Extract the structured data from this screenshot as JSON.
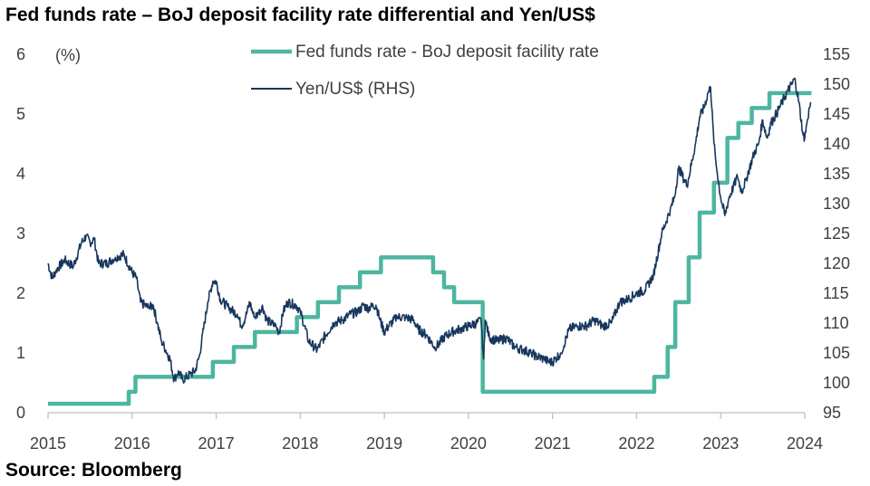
{
  "title": "Fed funds rate – BoJ deposit facility rate differential and Yen/US$",
  "source": "Source: Bloomberg",
  "chart_data": {
    "type": "line",
    "left_axis": {
      "unit_label": "(%)",
      "ylim": [
        0,
        6
      ],
      "ticks": [
        0,
        1,
        2,
        3,
        4,
        5,
        6
      ]
    },
    "right_axis": {
      "ylim": [
        95,
        155
      ],
      "ticks": [
        95,
        100,
        105,
        110,
        115,
        120,
        125,
        130,
        135,
        140,
        145,
        150,
        155
      ]
    },
    "x_axis": {
      "xlim": [
        2015,
        2024.2
      ],
      "ticks": [
        2015,
        2016,
        2017,
        2018,
        2019,
        2020,
        2021,
        2022,
        2023,
        2024
      ]
    },
    "grid": false,
    "legend_position": "top",
    "series": [
      {
        "name": "Fed funds rate - BoJ deposit facility rate",
        "axis": "left",
        "color": "#4db6a0",
        "step": true,
        "points": [
          [
            2015.0,
            0.15
          ],
          [
            2015.96,
            0.15
          ],
          [
            2015.96,
            0.35
          ],
          [
            2016.04,
            0.35
          ],
          [
            2016.04,
            0.6
          ],
          [
            2016.96,
            0.6
          ],
          [
            2016.96,
            0.85
          ],
          [
            2017.21,
            0.85
          ],
          [
            2017.21,
            1.1
          ],
          [
            2017.46,
            1.1
          ],
          [
            2017.46,
            1.35
          ],
          [
            2017.96,
            1.35
          ],
          [
            2017.96,
            1.6
          ],
          [
            2018.21,
            1.6
          ],
          [
            2018.21,
            1.85
          ],
          [
            2018.46,
            1.85
          ],
          [
            2018.46,
            2.1
          ],
          [
            2018.71,
            2.1
          ],
          [
            2018.71,
            2.35
          ],
          [
            2018.96,
            2.35
          ],
          [
            2018.96,
            2.6
          ],
          [
            2019.58,
            2.6
          ],
          [
            2019.58,
            2.35
          ],
          [
            2019.71,
            2.35
          ],
          [
            2019.71,
            2.1
          ],
          [
            2019.83,
            2.1
          ],
          [
            2019.83,
            1.85
          ],
          [
            2020.17,
            1.85
          ],
          [
            2020.17,
            0.35
          ],
          [
            2022.21,
            0.35
          ],
          [
            2022.21,
            0.6
          ],
          [
            2022.37,
            0.6
          ],
          [
            2022.37,
            1.1
          ],
          [
            2022.46,
            1.1
          ],
          [
            2022.46,
            1.85
          ],
          [
            2022.62,
            1.85
          ],
          [
            2022.62,
            2.6
          ],
          [
            2022.75,
            2.6
          ],
          [
            2022.75,
            3.35
          ],
          [
            2022.92,
            3.35
          ],
          [
            2022.92,
            3.85
          ],
          [
            2023.08,
            3.85
          ],
          [
            2023.08,
            4.6
          ],
          [
            2023.21,
            4.6
          ],
          [
            2023.21,
            4.85
          ],
          [
            2023.37,
            4.85
          ],
          [
            2023.37,
            5.1
          ],
          [
            2023.58,
            5.1
          ],
          [
            2023.58,
            5.35
          ],
          [
            2024.08,
            5.35
          ]
        ]
      },
      {
        "name": "Yen/US$ (RHS)",
        "axis": "right",
        "color": "#17375e",
        "points": [
          [
            2015.0,
            120
          ],
          [
            2015.05,
            117.5
          ],
          [
            2015.1,
            119
          ],
          [
            2015.2,
            120.5
          ],
          [
            2015.3,
            119.5
          ],
          [
            2015.4,
            123.5
          ],
          [
            2015.45,
            124.5
          ],
          [
            2015.5,
            123.5
          ],
          [
            2015.55,
            124
          ],
          [
            2015.6,
            120
          ],
          [
            2015.7,
            120
          ],
          [
            2015.8,
            121
          ],
          [
            2015.9,
            121.5
          ],
          [
            2016.0,
            118.5
          ],
          [
            2016.05,
            117.5
          ],
          [
            2016.1,
            113.5
          ],
          [
            2016.2,
            112.5
          ],
          [
            2016.25,
            113
          ],
          [
            2016.3,
            110
          ],
          [
            2016.35,
            107
          ],
          [
            2016.45,
            104
          ],
          [
            2016.5,
            100.5
          ],
          [
            2016.55,
            102
          ],
          [
            2016.6,
            100.5
          ],
          [
            2016.7,
            101.5
          ],
          [
            2016.75,
            102
          ],
          [
            2016.8,
            104.5
          ],
          [
            2016.85,
            109
          ],
          [
            2016.9,
            113.5
          ],
          [
            2016.96,
            117
          ],
          [
            2017.0,
            117
          ],
          [
            2017.05,
            114
          ],
          [
            2017.15,
            112.5
          ],
          [
            2017.25,
            111.5
          ],
          [
            2017.3,
            109.5
          ],
          [
            2017.35,
            111
          ],
          [
            2017.4,
            113.5
          ],
          [
            2017.45,
            111
          ],
          [
            2017.5,
            111.5
          ],
          [
            2017.55,
            113
          ],
          [
            2017.6,
            110.5
          ],
          [
            2017.7,
            109.5
          ],
          [
            2017.75,
            108.5
          ],
          [
            2017.8,
            112
          ],
          [
            2017.85,
            113.5
          ],
          [
            2017.95,
            113
          ],
          [
            2018.0,
            112
          ],
          [
            2018.05,
            109.5
          ],
          [
            2018.1,
            107
          ],
          [
            2018.2,
            105.5
          ],
          [
            2018.3,
            108
          ],
          [
            2018.4,
            110
          ],
          [
            2018.5,
            110.5
          ],
          [
            2018.6,
            111.5
          ],
          [
            2018.7,
            112
          ],
          [
            2018.75,
            113
          ],
          [
            2018.8,
            112.5
          ],
          [
            2018.9,
            113
          ],
          [
            2018.95,
            110.5
          ],
          [
            2019.0,
            108.5
          ],
          [
            2019.05,
            109.5
          ],
          [
            2019.15,
            111
          ],
          [
            2019.25,
            111
          ],
          [
            2019.35,
            110.5
          ],
          [
            2019.4,
            109
          ],
          [
            2019.5,
            108
          ],
          [
            2019.6,
            106
          ],
          [
            2019.65,
            106.5
          ],
          [
            2019.7,
            107.5
          ],
          [
            2019.8,
            108.5
          ],
          [
            2019.9,
            109
          ],
          [
            2020.0,
            109.5
          ],
          [
            2020.1,
            110
          ],
          [
            2020.15,
            110.5
          ],
          [
            2020.18,
            104
          ],
          [
            2020.2,
            110.5
          ],
          [
            2020.25,
            107.5
          ],
          [
            2020.35,
            107
          ],
          [
            2020.45,
            107.5
          ],
          [
            2020.55,
            106
          ],
          [
            2020.65,
            105.5
          ],
          [
            2020.75,
            105
          ],
          [
            2020.8,
            104.5
          ],
          [
            2020.9,
            104
          ],
          [
            2020.95,
            103.5
          ],
          [
            2021.0,
            103.5
          ],
          [
            2021.1,
            105
          ],
          [
            2021.2,
            109
          ],
          [
            2021.3,
            109.5
          ],
          [
            2021.4,
            109.5
          ],
          [
            2021.5,
            110.5
          ],
          [
            2021.6,
            109.5
          ],
          [
            2021.7,
            110
          ],
          [
            2021.8,
            113.5
          ],
          [
            2021.9,
            114
          ],
          [
            2022.0,
            115
          ],
          [
            2022.1,
            115.5
          ],
          [
            2022.2,
            118
          ],
          [
            2022.3,
            125
          ],
          [
            2022.4,
            129
          ],
          [
            2022.45,
            131
          ],
          [
            2022.5,
            136
          ],
          [
            2022.6,
            133
          ],
          [
            2022.7,
            140
          ],
          [
            2022.75,
            144.5
          ],
          [
            2022.8,
            146
          ],
          [
            2022.85,
            148.5
          ],
          [
            2022.88,
            149.5
          ],
          [
            2022.92,
            140
          ],
          [
            2022.96,
            135
          ],
          [
            2023.0,
            131
          ],
          [
            2023.05,
            128
          ],
          [
            2023.1,
            131
          ],
          [
            2023.2,
            134.5
          ],
          [
            2023.25,
            132
          ],
          [
            2023.3,
            134
          ],
          [
            2023.4,
            138.5
          ],
          [
            2023.45,
            140
          ],
          [
            2023.5,
            144
          ],
          [
            2023.55,
            141
          ],
          [
            2023.6,
            143.5
          ],
          [
            2023.7,
            146
          ],
          [
            2023.8,
            149
          ],
          [
            2023.85,
            150
          ],
          [
            2023.88,
            151
          ],
          [
            2023.93,
            147
          ],
          [
            2023.98,
            141.5
          ],
          [
            2024.0,
            141
          ],
          [
            2024.03,
            144
          ],
          [
            2024.07,
            147
          ]
        ]
      }
    ]
  }
}
